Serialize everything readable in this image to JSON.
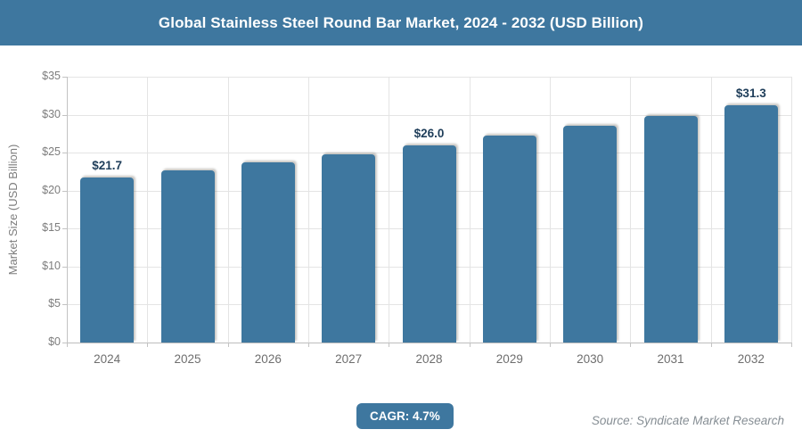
{
  "header": {
    "title": "Global Stainless Steel Round Bar Market, 2024 - 2032 (USD Billion)"
  },
  "chart_data": {
    "type": "bar",
    "title": "Global Stainless Steel Round Bar Market, 2024 - 2032 (USD Billion)",
    "categories": [
      "2024",
      "2025",
      "2026",
      "2027",
      "2028",
      "2029",
      "2030",
      "2031",
      "2032"
    ],
    "values": [
      21.7,
      22.7,
      23.7,
      24.8,
      26.0,
      27.2,
      28.5,
      29.8,
      31.3
    ],
    "data_labels": [
      {
        "index": 0,
        "text": "$21.7"
      },
      {
        "index": 4,
        "text": "$26.0"
      },
      {
        "index": 8,
        "text": "$31.3"
      }
    ],
    "xlabel": "",
    "ylabel": "Market Size (USD Billion)",
    "ylim": [
      0,
      35
    ],
    "ytick_step": 5,
    "ytick_labels": [
      "$0",
      "$5",
      "$10",
      "$15",
      "$20",
      "$25",
      "$30",
      "$35"
    ],
    "grid": true,
    "legend": "none",
    "bar_color": "#3e779f",
    "label_color": "#1f3e5a"
  },
  "footer": {
    "cagr_label": "CAGR: 4.7%",
    "source": "Source: Syndicate Market Research"
  }
}
